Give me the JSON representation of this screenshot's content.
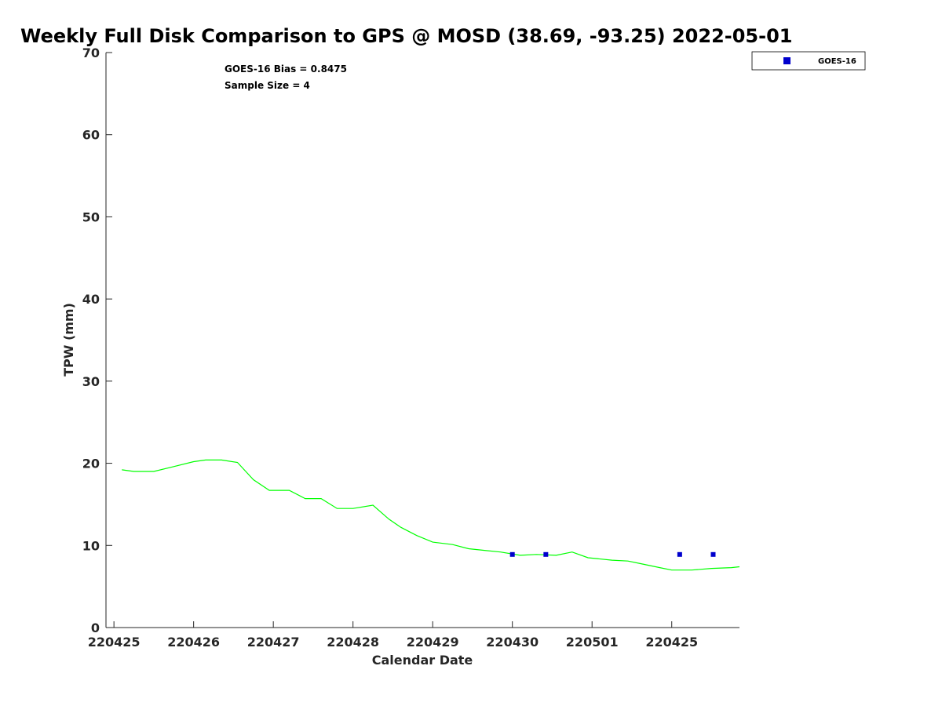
{
  "chart_data": {
    "type": "scatter",
    "title": "Weekly Full Disk Comparison to GPS @ MOSD (38.69, -93.25) 2022-05-01",
    "xlabel": "Calendar Date",
    "ylabel": "TPW (mm)",
    "xlim": [
      -0.1,
      7.85
    ],
    "ylim": [
      0,
      70
    ],
    "x_ticks": [
      {
        "value": 0,
        "label": "220425"
      },
      {
        "value": 1,
        "label": "220426"
      },
      {
        "value": 2,
        "label": "220427"
      },
      {
        "value": 3,
        "label": "220428"
      },
      {
        "value": 4,
        "label": "220429"
      },
      {
        "value": 5,
        "label": "220430"
      },
      {
        "value": 6,
        "label": "220501"
      },
      {
        "value": 7,
        "label": "220425"
      }
    ],
    "y_ticks": [
      0,
      10,
      20,
      30,
      40,
      50,
      60,
      70
    ],
    "y_tick_labels": [
      "0",
      "10",
      "20",
      "30",
      "40",
      "50",
      "60",
      "70"
    ],
    "annotations": [
      "GOES-16 Bias = 0.8475",
      "Sample Size = 4"
    ],
    "legend": {
      "position": "top-right",
      "entries": [
        "GOES-16"
      ]
    },
    "series": [
      {
        "name": "GPS",
        "kind": "line",
        "color": "#00ff00",
        "x": [
          0.1,
          0.25,
          0.5,
          0.75,
          1.0,
          1.15,
          1.35,
          1.55,
          1.75,
          1.95,
          2.2,
          2.4,
          2.6,
          2.8,
          3.0,
          3.25,
          3.45,
          3.6,
          3.8,
          4.0,
          4.25,
          4.45,
          4.65,
          4.85,
          5.1,
          5.3,
          5.55,
          5.75,
          5.95,
          6.25,
          6.45,
          6.65,
          6.85,
          7.0,
          7.25,
          7.5,
          7.75,
          7.85
        ],
        "y": [
          19.2,
          19.0,
          19.0,
          19.6,
          20.2,
          20.4,
          20.4,
          20.1,
          18.0,
          16.7,
          16.7,
          15.7,
          15.7,
          14.5,
          14.5,
          14.9,
          13.2,
          12.2,
          11.2,
          10.4,
          10.1,
          9.6,
          9.4,
          9.2,
          8.8,
          8.9,
          8.8,
          9.2,
          8.5,
          8.2,
          8.1,
          7.7,
          7.3,
          7.0,
          7.0,
          7.2,
          7.3,
          7.4
        ]
      },
      {
        "name": "GOES-16",
        "kind": "scatter",
        "color": "#0000cd",
        "x": [
          5.0,
          5.42,
          7.1,
          7.52
        ],
        "y": [
          8.9,
          8.9,
          8.9,
          8.9
        ]
      }
    ]
  }
}
